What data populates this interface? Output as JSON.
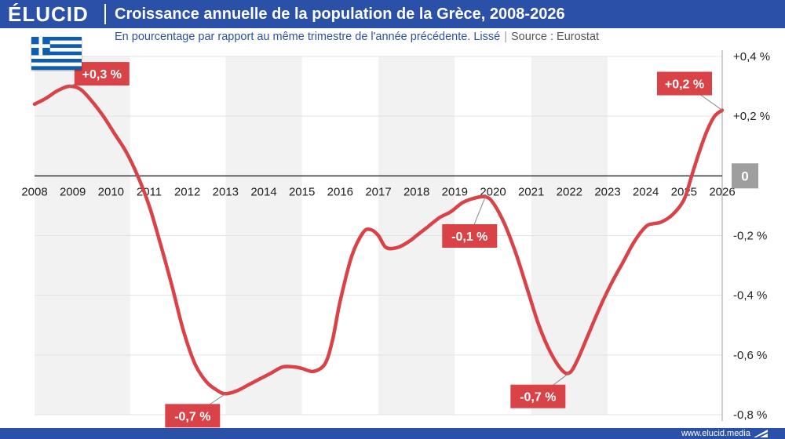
{
  "brand": {
    "logo_text": "ÉLUCID",
    "footer_url": "www.elucid.media"
  },
  "header": {
    "title": "Croissance annuelle de la population de la Grèce, 2008-2026",
    "subtitle": "En pourcentage par rapport au même trimestre de l'année précédente. Lissé",
    "separator": "|",
    "source": "Source : Eurostat"
  },
  "colors": {
    "header_bg": "#2a50a7",
    "line": "#d94348",
    "label_bg": "#d94348",
    "zero_badge": "#9e9e9e",
    "band": "#f2f2f2",
    "flag_blue": "#0d5eaf"
  },
  "icons": {
    "flag": "greece-flag-icon",
    "footer": "elucid-arrow-icon"
  },
  "chart_data": {
    "type": "line",
    "title": "Croissance annuelle de la population de la Grèce, 2008-2026",
    "subtitle": "En pourcentage par rapport au même trimestre de l'année précédente. Lissé",
    "xlabel": "",
    "ylabel": "",
    "xlim": [
      2008,
      2026
    ],
    "ylim": [
      -0.8,
      0.4
    ],
    "x_ticks": [
      "2008",
      "2009",
      "2010",
      "2011",
      "2012",
      "2013",
      "2014",
      "2015",
      "2016",
      "2017",
      "2018",
      "2019",
      "2020",
      "2021",
      "2022",
      "2023",
      "2024",
      "2025",
      "2026"
    ],
    "y_ticks": [
      {
        "value": 0.4,
        "label": "+0,4 %"
      },
      {
        "value": 0.2,
        "label": "+0,2 %"
      },
      {
        "value": 0,
        "label": "0"
      },
      {
        "value": -0.2,
        "label": "-0,2 %"
      },
      {
        "value": -0.4,
        "label": "-0,4 %"
      },
      {
        "value": -0.6,
        "label": "-0,6 %"
      },
      {
        "value": -0.8,
        "label": "-0,8 %"
      }
    ],
    "grid": true,
    "shaded_bands": [
      [
        2008,
        2010.5
      ],
      [
        2013,
        2015
      ],
      [
        2017,
        2019
      ],
      [
        2021,
        2023
      ]
    ],
    "series": [
      {
        "x": [
          2008.0,
          2008.3,
          2008.6,
          2008.9,
          2009.2,
          2009.5,
          2009.8,
          2010.1,
          2010.4,
          2010.7,
          2011.0,
          2011.3,
          2011.6,
          2011.9,
          2012.2,
          2012.5,
          2012.8,
          2013.0,
          2013.3,
          2013.6,
          2013.9,
          2014.2,
          2014.5,
          2014.8,
          2015.0,
          2015.3,
          2015.6,
          2015.8,
          2016.0,
          2016.3,
          2016.6,
          2016.8,
          2017.0,
          2017.2,
          2017.5,
          2017.8,
          2018.0,
          2018.3,
          2018.6,
          2018.9,
          2019.2,
          2019.5,
          2019.8,
          2020.0,
          2020.3,
          2020.6,
          2020.9,
          2021.2,
          2021.5,
          2021.8,
          2022.0,
          2022.2,
          2022.5,
          2022.8,
          2023.1,
          2023.4,
          2023.7,
          2024.0,
          2024.2,
          2024.4,
          2024.7,
          2025.0,
          2025.2,
          2025.4,
          2025.6,
          2025.8,
          2026.0
        ],
        "values": [
          0.24,
          0.26,
          0.285,
          0.3,
          0.29,
          0.25,
          0.2,
          0.14,
          0.08,
          0.0,
          -0.1,
          -0.23,
          -0.37,
          -0.52,
          -0.63,
          -0.69,
          -0.72,
          -0.73,
          -0.72,
          -0.7,
          -0.68,
          -0.66,
          -0.64,
          -0.64,
          -0.645,
          -0.655,
          -0.63,
          -0.55,
          -0.42,
          -0.27,
          -0.19,
          -0.18,
          -0.2,
          -0.24,
          -0.24,
          -0.22,
          -0.2,
          -0.17,
          -0.14,
          -0.12,
          -0.09,
          -0.075,
          -0.07,
          -0.09,
          -0.16,
          -0.26,
          -0.38,
          -0.5,
          -0.59,
          -0.65,
          -0.66,
          -0.62,
          -0.53,
          -0.44,
          -0.36,
          -0.29,
          -0.22,
          -0.17,
          -0.16,
          -0.155,
          -0.13,
          -0.08,
          0.0,
          0.08,
          0.15,
          0.2,
          0.22
        ]
      }
    ],
    "annotations": [
      {
        "text": "+0,3 %",
        "x": 2008.9,
        "y": 0.3
      },
      {
        "text": "-0,7 %",
        "x": 2013.0,
        "y": -0.73
      },
      {
        "text": "-0,1 %",
        "x": 2019.8,
        "y": -0.07
      },
      {
        "text": "-0,7 %",
        "x": 2022.0,
        "y": -0.66
      },
      {
        "text": "+0,2 %",
        "x": 2026.0,
        "y": 0.22
      }
    ]
  }
}
